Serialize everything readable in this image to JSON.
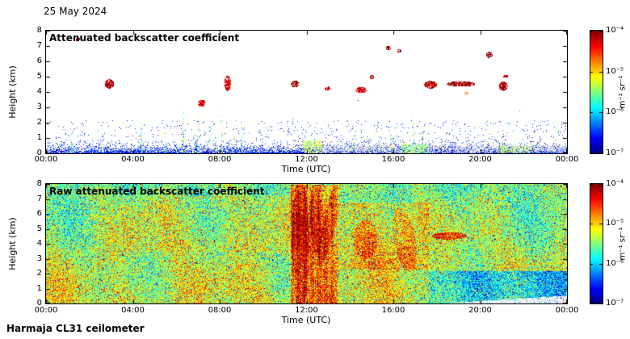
{
  "figure": {
    "date_label": "25 May 2024",
    "instrument_label": "Harmaja CL31 ceilometer"
  },
  "chart_data": [
    {
      "type": "heatmap",
      "title": "Attenuated backscatter coefficient",
      "xlabel": "Time (UTC)",
      "ylabel": "Height (km)",
      "x_ticks": [
        "00:00",
        "04:00",
        "08:00",
        "12:00",
        "16:00",
        "20:00",
        "00:00"
      ],
      "x_range_hours": [
        0,
        24
      ],
      "y_ticks": [
        "0",
        "1",
        "2",
        "3",
        "4",
        "5",
        "6",
        "7",
        "8"
      ],
      "y_range_km": [
        0,
        8
      ],
      "colorbar": {
        "label": "m⁻¹ sr⁻¹",
        "ticks": [
          "10⁻⁴",
          "10⁻⁵",
          "10⁻⁶",
          "10⁻⁷"
        ],
        "scale": "log",
        "min_value": 1e-07,
        "max_value": 0.0001,
        "colormap": "jet"
      },
      "render": {
        "background": "white",
        "boundary_layer": {
          "scale_km": 0.3,
          "sparse_max_km": 2.2
        },
        "haze": {
          "t0": 12,
          "t1": 24,
          "h_max": 0.55
        },
        "patches": [
          {
            "t0": 11.8,
            "t1": 12.7,
            "h_max": 0.85,
            "v0": 0.45,
            "v1": 0.7,
            "density": 0.5
          },
          {
            "t0": 16.3,
            "t1": 17.6,
            "h_max": 0.6,
            "v0": 0.4,
            "v1": 0.62,
            "density": 0.45
          },
          {
            "t0": 20.8,
            "t1": 22.3,
            "h_max": 0.5,
            "v0": 0.45,
            "v1": 0.65,
            "density": 0.35
          }
        ],
        "spikes": [
          {
            "t": 1.15,
            "h": 1.6
          },
          {
            "t": 4.4,
            "h": 2.3
          },
          {
            "t": 5.5,
            "h": 1.5
          },
          {
            "t": 6.3,
            "h": 2.9
          },
          {
            "t": 7.0,
            "h": 3.0
          },
          {
            "t": 7.55,
            "h": 1.8
          },
          {
            "t": 8.05,
            "h": 3.0
          },
          {
            "t": 8.65,
            "h": 1.6
          },
          {
            "t": 9.0,
            "h": 2.1
          },
          {
            "t": 13.6,
            "h": 1.4
          },
          {
            "t": 14.1,
            "h": 1.2
          },
          {
            "t": 14.85,
            "h": 1.5
          },
          {
            "t": 15.35,
            "h": 1.3
          },
          {
            "t": 15.9,
            "h": 1.8
          },
          {
            "t": 16.45,
            "h": 1.3
          },
          {
            "t": 16.9,
            "h": 2.6
          },
          {
            "t": 17.3,
            "h": 2.0
          },
          {
            "t": 18.1,
            "h": 1.2
          },
          {
            "t": 21.0,
            "h": 1.1
          },
          {
            "t": 22.6,
            "h": 1.0
          }
        ],
        "clouds": [
          {
            "t": 1.45,
            "h": 7.45,
            "dt": 0.1,
            "dh": 0.12,
            "v": 0.97
          },
          {
            "t": 2.9,
            "h": 4.55,
            "dt": 0.22,
            "dh": 0.3,
            "v": 0.93
          },
          {
            "t": 7.15,
            "h": 3.3,
            "dt": 0.18,
            "dh": 0.22,
            "v": 0.9
          },
          {
            "t": 8.35,
            "h": 4.6,
            "dt": 0.15,
            "dh": 0.5,
            "v": 0.9
          },
          {
            "t": 11.45,
            "h": 4.55,
            "dt": 0.18,
            "dh": 0.22,
            "v": 0.96
          },
          {
            "t": 12.95,
            "h": 4.25,
            "dt": 0.12,
            "dh": 0.15,
            "v": 0.9
          },
          {
            "t": 14.5,
            "h": 4.15,
            "dt": 0.25,
            "dh": 0.2,
            "v": 0.9
          },
          {
            "t": 15.0,
            "h": 5.0,
            "dt": 0.1,
            "dh": 0.12,
            "v": 0.92
          },
          {
            "t": 15.75,
            "h": 6.9,
            "dt": 0.12,
            "dh": 0.15,
            "v": 0.96
          },
          {
            "t": 16.25,
            "h": 6.7,
            "dt": 0.1,
            "dh": 0.12,
            "v": 0.95
          },
          {
            "t": 17.7,
            "h": 4.5,
            "dt": 0.3,
            "dh": 0.25,
            "v": 0.92
          },
          {
            "t": 19.1,
            "h": 4.55,
            "dt": 0.65,
            "dh": 0.18,
            "v": 0.95
          },
          {
            "t": 19.35,
            "h": 3.95,
            "dt": 0.08,
            "dh": 0.1,
            "v": 0.75
          },
          {
            "t": 20.4,
            "h": 6.45,
            "dt": 0.15,
            "dh": 0.2,
            "v": 0.97
          },
          {
            "t": 21.05,
            "h": 4.4,
            "dt": 0.2,
            "dh": 0.3,
            "v": 0.94
          },
          {
            "t": 21.15,
            "h": 5.05,
            "dt": 0.12,
            "dh": 0.1,
            "v": 0.9
          }
        ]
      }
    },
    {
      "type": "heatmap",
      "title": "Raw attenuated backscatter coefficient",
      "xlabel": "Time (UTC)",
      "ylabel": "Height (km)",
      "x_ticks": [
        "00:00",
        "04:00",
        "08:00",
        "12:00",
        "16:00",
        "20:00",
        "00:00"
      ],
      "x_range_hours": [
        0,
        24
      ],
      "y_ticks": [
        "0",
        "1",
        "2",
        "3",
        "4",
        "5",
        "6",
        "7",
        "8"
      ],
      "y_range_km": [
        0,
        8
      ],
      "colorbar": {
        "label": "m⁻¹ sr⁻¹",
        "ticks": [
          "10⁻⁴",
          "10⁻⁵",
          "10⁻⁶",
          "10⁻⁷"
        ],
        "scale": "log",
        "min_value": 1e-07,
        "max_value": 0.0001,
        "colormap": "jet"
      },
      "render": {
        "base_v": 0.6,
        "height_slope": 0.015,
        "noise": 0.3,
        "regions": [
          {
            "t0": 11.25,
            "t1": 13.4,
            "h0": 0,
            "h1": 8,
            "dv": 0.2
          },
          {
            "t0": 13.4,
            "t1": 17.6,
            "h0": 2.3,
            "h1": 6.8,
            "dv": 0.1
          },
          {
            "t0": 3.5,
            "t1": 11.25,
            "h0": 3.5,
            "h1": 7.2,
            "dv": 0.05
          },
          {
            "t0": 17.6,
            "t1": 24,
            "h0": 0,
            "h1": 2.2,
            "dv": -0.32,
            "grad": true
          }
        ],
        "blobs": [
          {
            "t": 11.7,
            "h": 4.0,
            "dt": 0.4,
            "dh": 4.5,
            "dv": 0.16
          },
          {
            "t": 12.45,
            "h": 6.0,
            "dt": 0.3,
            "dh": 2.6,
            "dv": 0.14
          },
          {
            "t": 13.05,
            "h": 5.5,
            "dt": 0.3,
            "dh": 3.0,
            "dv": 0.15,
            "skew": 0.15
          },
          {
            "t": 14.7,
            "h": 4.3,
            "dt": 0.55,
            "dh": 1.3,
            "dv": 0.15
          },
          {
            "t": 16.5,
            "h": 4.3,
            "dt": 0.5,
            "dh": 2.2,
            "dv": 0.14,
            "skew": -0.12
          },
          {
            "t": 18.55,
            "h": 4.55,
            "dt": 0.8,
            "dh": 0.25,
            "dv": 0.3
          }
        ],
        "streak_column": {
          "t0": 11.25,
          "t1": 13.4
        },
        "white_wedge": {
          "t0": 18.5,
          "h0": 0.05,
          "slope": 0.09
        },
        "dark_dot_prob": 0.025,
        "bright_dot_prob": 0.02
      }
    }
  ]
}
